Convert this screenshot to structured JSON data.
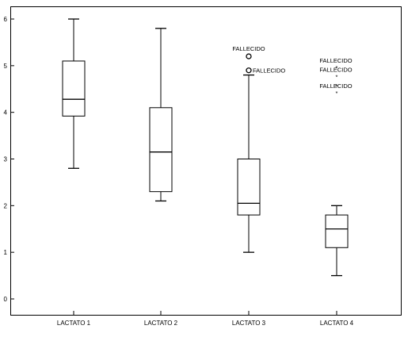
{
  "chart_data": {
    "type": "boxplot",
    "title": "",
    "xlabel": "",
    "ylabel": "",
    "ylim": [
      -0.2,
      6.3
    ],
    "y_ticks": [
      0,
      1,
      2,
      3,
      4,
      5,
      6
    ],
    "y_tick_labels": [
      "0",
      "1",
      "2",
      "3",
      "4",
      "5",
      "6"
    ],
    "grid": false,
    "categories": [
      "LACTATO 1",
      "LACTATO 2",
      "LACTATO 3",
      "LACTATO 4"
    ],
    "boxes": [
      {
        "category": "LACTATO 1",
        "min": 2.8,
        "q1": 3.92,
        "median": 4.28,
        "q3": 5.1,
        "max": 6.0,
        "outliers": []
      },
      {
        "category": "LACTATO 2",
        "min": 2.1,
        "q1": 2.3,
        "median": 3.15,
        "q3": 4.1,
        "max": 5.8,
        "outliers": []
      },
      {
        "category": "LACTATO 3",
        "min": 1.0,
        "q1": 1.8,
        "median": 2.05,
        "q3": 3.0,
        "max": 4.8,
        "outliers": [
          {
            "value": 5.2,
            "marker": "circle",
            "label": "FALLECIDO"
          },
          {
            "value": 4.9,
            "marker": "circle",
            "label": "FALLECIDO"
          }
        ]
      },
      {
        "category": "LACTATO 4",
        "min": 0.5,
        "q1": 1.1,
        "median": 1.5,
        "q3": 1.8,
        "max": 2.0,
        "outliers": [
          {
            "value": 5.0,
            "marker": "star",
            "label": "FALLECIDO"
          },
          {
            "value": 4.8,
            "marker": "star",
            "label": "FALLECIDO"
          },
          {
            "value": 4.6,
            "marker": "star",
            "label": ""
          },
          {
            "value": 4.45,
            "marker": "star",
            "label": "FALLECIDO"
          }
        ]
      }
    ]
  }
}
